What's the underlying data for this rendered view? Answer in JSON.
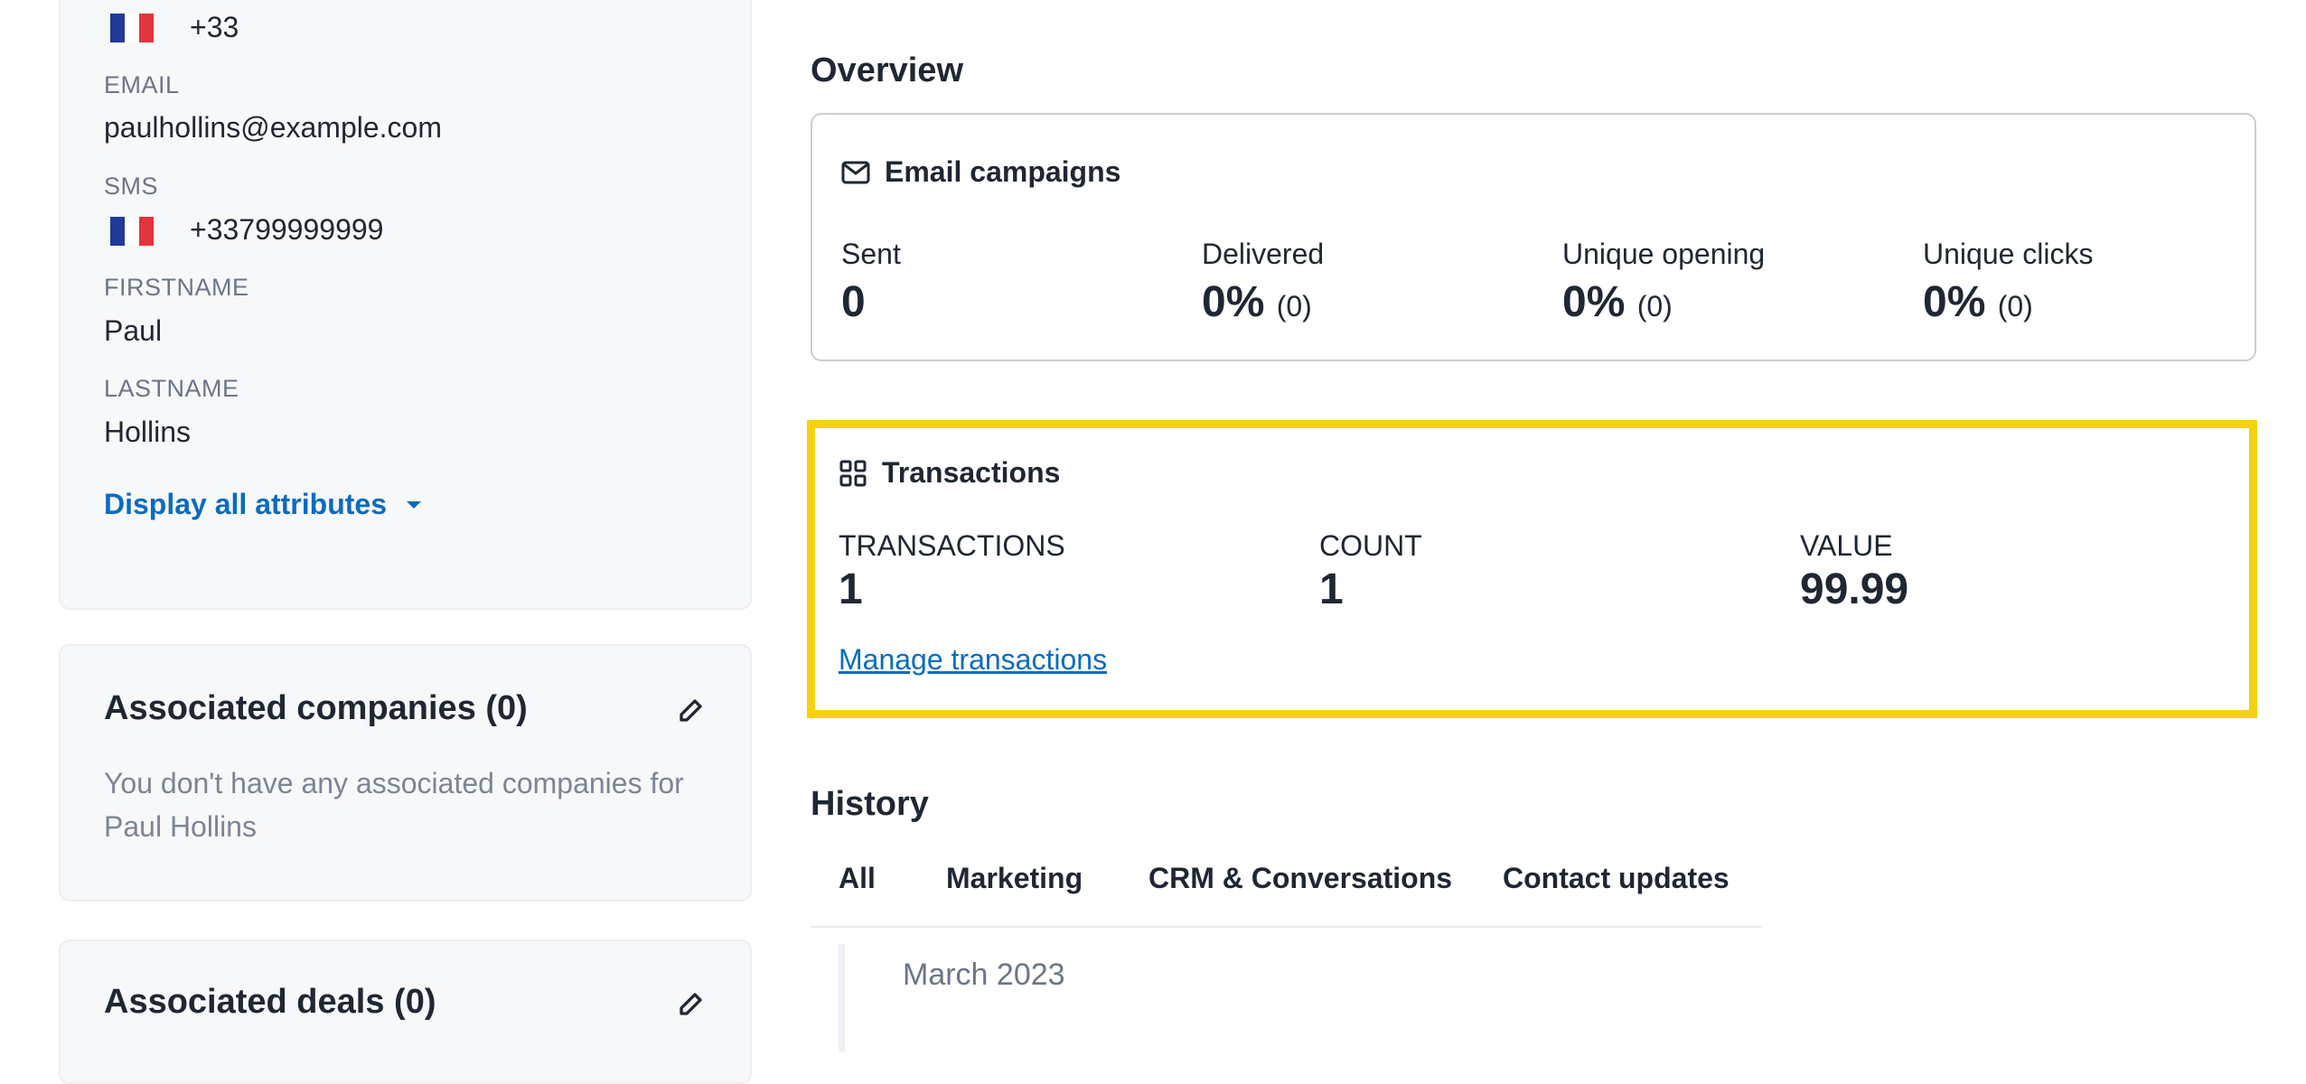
{
  "contact": {
    "phone": {
      "dial_code": "+33"
    },
    "email": {
      "label": "EMAIL",
      "value": "paulhollins@example.com"
    },
    "sms": {
      "label": "SMS",
      "value": "+33799999999"
    },
    "firstname": {
      "label": "FIRSTNAME",
      "value": "Paul"
    },
    "lastname": {
      "label": "LASTNAME",
      "value": "Hollins"
    },
    "display_all_label": "Display all attributes"
  },
  "companies": {
    "title": "Associated companies (0)",
    "empty_line1": "You don't have any associated companies for",
    "empty_line2": "Paul Hollins"
  },
  "deals": {
    "title": "Associated deals (0)"
  },
  "overview": {
    "title": "Overview",
    "email_campaigns": {
      "title": "Email campaigns",
      "stats": [
        {
          "label": "Sent",
          "value": "0",
          "extra": ""
        },
        {
          "label": "Delivered",
          "value": "0%",
          "extra": "(0)"
        },
        {
          "label": "Unique opening",
          "value": "0%",
          "extra": "(0)"
        },
        {
          "label": "Unique clicks",
          "value": "0%",
          "extra": "(0)"
        }
      ]
    },
    "transactions": {
      "title": "Transactions",
      "stats": [
        {
          "label": "TRANSACTIONS",
          "value": "1"
        },
        {
          "label": "COUNT",
          "value": "1"
        },
        {
          "label": "VALUE",
          "value": "99.99"
        }
      ],
      "manage_link": "Manage transactions",
      "highlight_color": "#f5d10f"
    }
  },
  "history": {
    "title": "History",
    "tabs": [
      "All",
      "Marketing",
      "CRM & Conversations",
      "Contact updates"
    ],
    "timeline_month": "March 2023"
  }
}
